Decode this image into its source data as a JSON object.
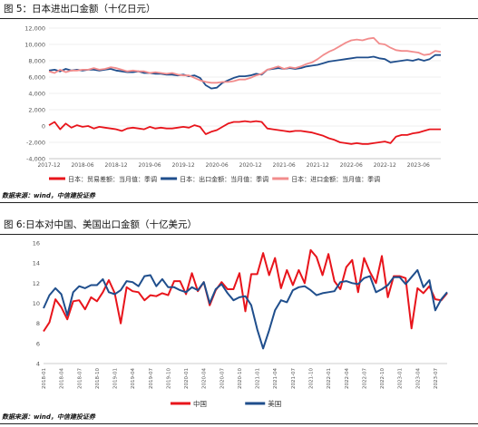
{
  "figure1": {
    "caption": "图 5：日本进出口金额（十亿日元）",
    "source": "数据来源：wind，中信建投证券",
    "chart_data": {
      "type": "line",
      "yticks": [
        "12,000",
        "10,000",
        "8,000",
        "6,000",
        "4,000",
        "2,000",
        "0",
        "-2,000",
        "-4,000"
      ],
      "ylim": [
        -4000,
        12000
      ],
      "xticks": [
        "2017-12",
        "2018-06",
        "2018-12",
        "2019-06",
        "2019-12",
        "2020-06",
        "2020-12",
        "2021-06",
        "2021-12",
        "2022-06",
        "2022-12",
        "2023-06"
      ],
      "grid": true,
      "legend": "bottom",
      "series": [
        {
          "name": "日本：贸易差额：当月值：季调",
          "color": "#e8141b",
          "x": [
            "2017-12",
            "2018-01",
            "2018-02",
            "2018-03",
            "2018-04",
            "2018-05",
            "2018-06",
            "2018-07",
            "2018-08",
            "2018-09",
            "2018-10",
            "2018-11",
            "2018-12",
            "2019-01",
            "2019-02",
            "2019-03",
            "2019-04",
            "2019-05",
            "2019-06",
            "2019-07",
            "2019-08",
            "2019-09",
            "2019-10",
            "2019-11",
            "2019-12",
            "2020-01",
            "2020-02",
            "2020-03",
            "2020-04",
            "2020-05",
            "2020-06",
            "2020-07",
            "2020-08",
            "2020-09",
            "2020-10",
            "2020-11",
            "2020-12",
            "2021-01",
            "2021-02",
            "2021-03",
            "2021-04",
            "2021-05",
            "2021-06",
            "2021-07",
            "2021-08",
            "2021-09",
            "2021-10",
            "2021-11",
            "2021-12",
            "2022-01",
            "2022-02",
            "2022-03",
            "2022-04",
            "2022-05",
            "2022-06",
            "2022-07",
            "2022-08",
            "2022-09",
            "2022-10",
            "2022-11",
            "2022-12",
            "2023-01",
            "2023-02",
            "2023-03",
            "2023-04",
            "2023-05",
            "2023-06",
            "2023-07",
            "2023-08",
            "2023-09",
            "2023-10"
          ],
          "values": [
            100,
            500,
            -400,
            300,
            -200,
            100,
            -100,
            0,
            -300,
            -100,
            -200,
            -300,
            -400,
            -600,
            -300,
            -200,
            -300,
            -400,
            -100,
            -300,
            -200,
            -300,
            -300,
            -200,
            -100,
            -200,
            100,
            -100,
            -1000,
            -700,
            -500,
            -100,
            300,
            500,
            500,
            600,
            500,
            600,
            500,
            -300,
            -400,
            -500,
            -600,
            -700,
            -600,
            -600,
            -700,
            -800,
            -1000,
            -1200,
            -1500,
            -1700,
            -2000,
            -2100,
            -2200,
            -2100,
            -2200,
            -2200,
            -2100,
            -2000,
            -1900,
            -2100,
            -1300,
            -1100,
            -1100,
            -900,
            -800,
            -600,
            -400,
            -400,
            -400
          ]
        },
        {
          "name": "日本：出口金额：当月值：季调",
          "color": "#1f4e8c",
          "x": [
            "2017-12",
            "2018-01",
            "2018-02",
            "2018-03",
            "2018-04",
            "2018-05",
            "2018-06",
            "2018-07",
            "2018-08",
            "2018-09",
            "2018-10",
            "2018-11",
            "2018-12",
            "2019-01",
            "2019-02",
            "2019-03",
            "2019-04",
            "2019-05",
            "2019-06",
            "2019-07",
            "2019-08",
            "2019-09",
            "2019-10",
            "2019-11",
            "2019-12",
            "2020-01",
            "2020-02",
            "2020-03",
            "2020-04",
            "2020-05",
            "2020-06",
            "2020-07",
            "2020-08",
            "2020-09",
            "2020-10",
            "2020-11",
            "2020-12",
            "2021-01",
            "2021-02",
            "2021-03",
            "2021-04",
            "2021-05",
            "2021-06",
            "2021-07",
            "2021-08",
            "2021-09",
            "2021-10",
            "2021-11",
            "2021-12",
            "2022-01",
            "2022-02",
            "2022-03",
            "2022-04",
            "2022-05",
            "2022-06",
            "2022-07",
            "2022-08",
            "2022-09",
            "2022-10",
            "2022-11",
            "2022-12",
            "2023-01",
            "2023-02",
            "2023-03",
            "2023-04",
            "2023-05",
            "2023-06",
            "2023-07",
            "2023-08",
            "2023-09",
            "2023-10"
          ],
          "values": [
            6800,
            6900,
            6700,
            7000,
            6800,
            6900,
            6800,
            6900,
            6900,
            6800,
            6900,
            7000,
            6800,
            6700,
            6600,
            6600,
            6700,
            6500,
            6500,
            6400,
            6400,
            6300,
            6300,
            6200,
            6300,
            6100,
            6200,
            5900,
            5000,
            4600,
            4700,
            5300,
            5600,
            5900,
            6100,
            6100,
            6200,
            6400,
            6300,
            6900,
            7000,
            7100,
            7000,
            7100,
            7000,
            7100,
            7300,
            7400,
            7500,
            7700,
            7900,
            8000,
            8100,
            8200,
            8300,
            8400,
            8400,
            8400,
            8500,
            8300,
            8200,
            7800,
            7900,
            8000,
            8100,
            8000,
            8200,
            8000,
            8200,
            8700,
            8700
          ]
        },
        {
          "name": "日本：进口金额：当月值：季调",
          "color": "#f28c8c",
          "x": [
            "2017-12",
            "2018-01",
            "2018-02",
            "2018-03",
            "2018-04",
            "2018-05",
            "2018-06",
            "2018-07",
            "2018-08",
            "2018-09",
            "2018-10",
            "2018-11",
            "2018-12",
            "2019-01",
            "2019-02",
            "2019-03",
            "2019-04",
            "2019-05",
            "2019-06",
            "2019-07",
            "2019-08",
            "2019-09",
            "2019-10",
            "2019-11",
            "2019-12",
            "2020-01",
            "2020-02",
            "2020-03",
            "2020-04",
            "2020-05",
            "2020-06",
            "2020-07",
            "2020-08",
            "2020-09",
            "2020-10",
            "2020-11",
            "2020-12",
            "2021-01",
            "2021-02",
            "2021-03",
            "2021-04",
            "2021-05",
            "2021-06",
            "2021-07",
            "2021-08",
            "2021-09",
            "2021-10",
            "2021-11",
            "2021-12",
            "2022-01",
            "2022-02",
            "2022-03",
            "2022-04",
            "2022-05",
            "2022-06",
            "2022-07",
            "2022-08",
            "2022-09",
            "2022-10",
            "2022-11",
            "2022-12",
            "2023-01",
            "2023-02",
            "2023-03",
            "2023-04",
            "2023-05",
            "2023-06",
            "2023-07",
            "2023-08",
            "2023-09",
            "2023-10"
          ],
          "values": [
            6700,
            6500,
            6900,
            6600,
            6800,
            6800,
            6900,
            6900,
            7100,
            6900,
            7000,
            7200,
            7100,
            6900,
            6700,
            6800,
            6700,
            6700,
            6500,
            6600,
            6500,
            6400,
            6500,
            6300,
            6200,
            6200,
            5900,
            5600,
            5400,
            5300,
            5300,
            5400,
            5400,
            5500,
            5700,
            5700,
            5900,
            6200,
            6400,
            6900,
            7100,
            7300,
            7000,
            7200,
            7100,
            7300,
            7600,
            7800,
            8200,
            8700,
            9100,
            9400,
            9800,
            10200,
            10500,
            10600,
            10500,
            10700,
            10800,
            10100,
            10000,
            9600,
            9300,
            9200,
            9200,
            9100,
            9000,
            8700,
            8800,
            9200,
            9100
          ]
        }
      ]
    }
  },
  "figure2": {
    "caption": "图 6:日本对中国、美国出口金额（十亿美元）",
    "source": "数据来源：wind，中信建投证券",
    "chart_data": {
      "type": "line",
      "yticks": [
        "16",
        "14",
        "12",
        "10",
        "8",
        "6",
        "4"
      ],
      "ylim": [
        4,
        16
      ],
      "xticks": [
        "2018-01",
        "2018-04",
        "2018-07",
        "2018-10",
        "2019-01",
        "2019-04",
        "2019-07",
        "2019-10",
        "2020-01",
        "2020-04",
        "2020-07",
        "2020-10",
        "2021-01",
        "2021-04",
        "2021-07",
        "2021-10",
        "2022-01",
        "2022-04",
        "2022-07",
        "2022-10",
        "2023-01",
        "2023-04",
        "2023-07"
      ],
      "grid": false,
      "legend": "bottom",
      "series": [
        {
          "name": "中国",
          "color": "#e8141b",
          "x": [
            "2018-01",
            "2018-02",
            "2018-03",
            "2018-04",
            "2018-05",
            "2018-06",
            "2018-07",
            "2018-08",
            "2018-09",
            "2018-10",
            "2018-11",
            "2018-12",
            "2019-01",
            "2019-02",
            "2019-03",
            "2019-04",
            "2019-05",
            "2019-06",
            "2019-07",
            "2019-08",
            "2019-09",
            "2019-10",
            "2019-11",
            "2019-12",
            "2020-01",
            "2020-02",
            "2020-03",
            "2020-04",
            "2020-05",
            "2020-06",
            "2020-07",
            "2020-08",
            "2020-09",
            "2020-10",
            "2020-11",
            "2020-12",
            "2021-01",
            "2021-02",
            "2021-03",
            "2021-04",
            "2021-05",
            "2021-06",
            "2021-07",
            "2021-08",
            "2021-09",
            "2021-10",
            "2021-11",
            "2021-12",
            "2022-01",
            "2022-02",
            "2022-03",
            "2022-04",
            "2022-05",
            "2022-06",
            "2022-07",
            "2022-08",
            "2022-09",
            "2022-10",
            "2022-11",
            "2022-12",
            "2023-01",
            "2023-02",
            "2023-03",
            "2023-04",
            "2023-05",
            "2023-06",
            "2023-07",
            "2023-08",
            "2023-09"
          ],
          "values": [
            7.2,
            8.1,
            10.4,
            9.6,
            8.4,
            10.2,
            10.3,
            9.4,
            10.6,
            10.2,
            11.1,
            12.3,
            11.0,
            8.0,
            11.6,
            11.2,
            11.1,
            10.3,
            10.8,
            10.7,
            11.0,
            10.8,
            12.2,
            12.2,
            10.9,
            13.0,
            11.2,
            12.1,
            9.8,
            11.3,
            12.1,
            11.4,
            11.4,
            13.0,
            9.2,
            12.9,
            12.9,
            15.0,
            12.8,
            14.5,
            11.5,
            13.3,
            11.8,
            13.3,
            12.0,
            15.3,
            14.6,
            12.8,
            14.9,
            12.2,
            11.4,
            13.6,
            14.3,
            11.1,
            14.5,
            13.1,
            12.0,
            14.7,
            10.6,
            12.7,
            12.7,
            12.5,
            7.5,
            11.5,
            11.0,
            11.7,
            10.4,
            10.3,
            11.0
          ]
        },
        {
          "name": "美国",
          "color": "#1f4e8c",
          "x": [
            "2018-01",
            "2018-02",
            "2018-03",
            "2018-04",
            "2018-05",
            "2018-06",
            "2018-07",
            "2018-08",
            "2018-09",
            "2018-10",
            "2018-11",
            "2018-12",
            "2019-01",
            "2019-02",
            "2019-03",
            "2019-04",
            "2019-05",
            "2019-06",
            "2019-07",
            "2019-08",
            "2019-09",
            "2019-10",
            "2019-11",
            "2019-12",
            "2020-01",
            "2020-02",
            "2020-03",
            "2020-04",
            "2020-05",
            "2020-06",
            "2020-07",
            "2020-08",
            "2020-09",
            "2020-10",
            "2020-11",
            "2020-12",
            "2021-01",
            "2021-02",
            "2021-03",
            "2021-04",
            "2021-05",
            "2021-06",
            "2021-07",
            "2021-08",
            "2021-09",
            "2021-10",
            "2021-11",
            "2021-12",
            "2022-01",
            "2022-02",
            "2022-03",
            "2022-04",
            "2022-05",
            "2022-06",
            "2022-07",
            "2022-08",
            "2022-09",
            "2022-10",
            "2022-11",
            "2022-12",
            "2023-01",
            "2023-02",
            "2023-03",
            "2023-04",
            "2023-05",
            "2023-06",
            "2023-07",
            "2023-08",
            "2023-09"
          ],
          "values": [
            9.5,
            10.8,
            11.5,
            10.9,
            8.8,
            11.1,
            11.7,
            11.5,
            11.8,
            11.8,
            12.4,
            11.1,
            10.9,
            11.3,
            12.2,
            12.1,
            11.7,
            12.7,
            12.8,
            11.7,
            12.4,
            11.6,
            11.6,
            11.3,
            11.1,
            11.6,
            11.3,
            12.1,
            10.0,
            11.4,
            11.9,
            11.0,
            10.3,
            10.6,
            10.7,
            9.8,
            7.4,
            5.5,
            7.3,
            9.3,
            10.3,
            10.1,
            11.3,
            11.6,
            11.7,
            11.3,
            10.8,
            11.0,
            11.1,
            11.2,
            12.1,
            12.2,
            12.0,
            11.9,
            12.5,
            12.7,
            11.1,
            11.4,
            11.8,
            12.6,
            12.6,
            11.9,
            12.6,
            13.3,
            11.6,
            12.3,
            9.3,
            10.4,
            11.1
          ]
        }
      ]
    }
  }
}
